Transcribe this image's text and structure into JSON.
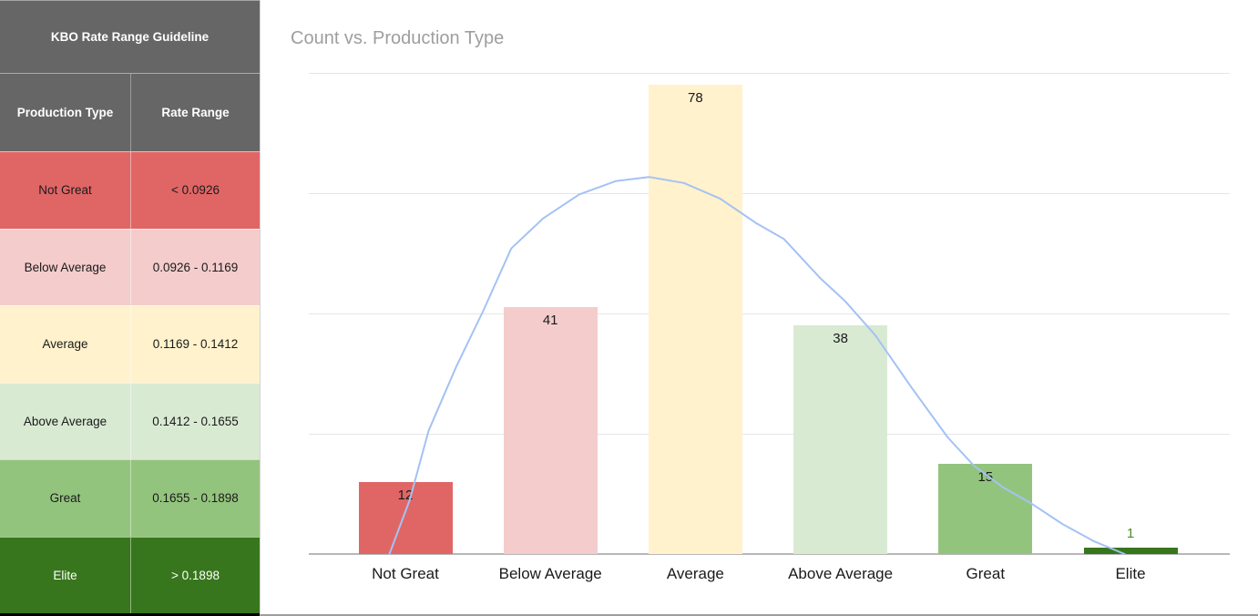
{
  "sidebar": {
    "title": "KBO Rate Range Guideline",
    "columns": [
      "Production Type",
      "Rate Range"
    ],
    "header_bg": "#666666",
    "rows": [
      {
        "type": "Not Great",
        "range": "< 0.0926",
        "bg": "#e06666",
        "text": "#1a1a1a"
      },
      {
        "type": "Below Average",
        "range": "0.0926 - 0.1169",
        "bg": "#f4cccc",
        "text": "#1a1a1a"
      },
      {
        "type": "Average",
        "range": "0.1169 - 0.1412",
        "bg": "#fff2cc",
        "text": "#1a1a1a"
      },
      {
        "type": "Above Average",
        "range": "0.1412 - 0.1655",
        "bg": "#d9ead3",
        "text": "#1a1a1a"
      },
      {
        "type": "Great",
        "range": "0.1655 - 0.1898",
        "bg": "#93c47d",
        "text": "#1a1a1a"
      },
      {
        "type": "Elite",
        "range": "> 0.1898",
        "bg": "#38761d",
        "text": "#ffffff"
      }
    ]
  },
  "chart_data": {
    "type": "bar",
    "title": "Count vs. Production Type",
    "xlabel": "",
    "ylabel": "",
    "categories": [
      "Not Great",
      "Below Average",
      "Average",
      "Above Average",
      "Great",
      "Elite"
    ],
    "values": [
      12,
      41,
      78,
      38,
      15,
      1
    ],
    "bar_colors": [
      "#e06666",
      "#f4cccc",
      "#fff2cc",
      "#d9ead3",
      "#93c47d",
      "#38761d"
    ],
    "value_label_colors": [
      "#1a1a1a",
      "#1a1a1a",
      "#1a1a1a",
      "#1a1a1a",
      "#1a1a1a",
      "#4e8b2e"
    ],
    "ylim": [
      0,
      80
    ],
    "gridline_step": 20,
    "grid": true,
    "y_tick_labels_visible": false,
    "legend": "none",
    "trend_curve": {
      "description": "fitted bell curve overlay",
      "color": "#a4c2f4",
      "points_index_count": [
        [
          -0.11,
          0
        ],
        [
          0.03,
          9
        ],
        [
          0.16,
          20.5
        ],
        [
          0.35,
          31.1
        ],
        [
          0.54,
          40.6
        ],
        [
          0.73,
          50.8
        ],
        [
          0.95,
          55.8
        ],
        [
          1.2,
          59.8
        ],
        [
          1.45,
          62.0
        ],
        [
          1.68,
          62.7
        ],
        [
          1.92,
          61.7
        ],
        [
          2.17,
          59.1
        ],
        [
          2.42,
          55.0
        ],
        [
          2.61,
          52.4
        ],
        [
          2.86,
          45.9
        ],
        [
          3.03,
          42.1
        ],
        [
          3.24,
          36.4
        ],
        [
          3.49,
          27.7
        ],
        [
          3.74,
          19.4
        ],
        [
          3.92,
          14.7
        ],
        [
          4.12,
          11.1
        ],
        [
          4.31,
          8.5
        ],
        [
          4.53,
          5.0
        ],
        [
          4.75,
          2.1
        ],
        [
          4.96,
          0
        ]
      ]
    }
  }
}
